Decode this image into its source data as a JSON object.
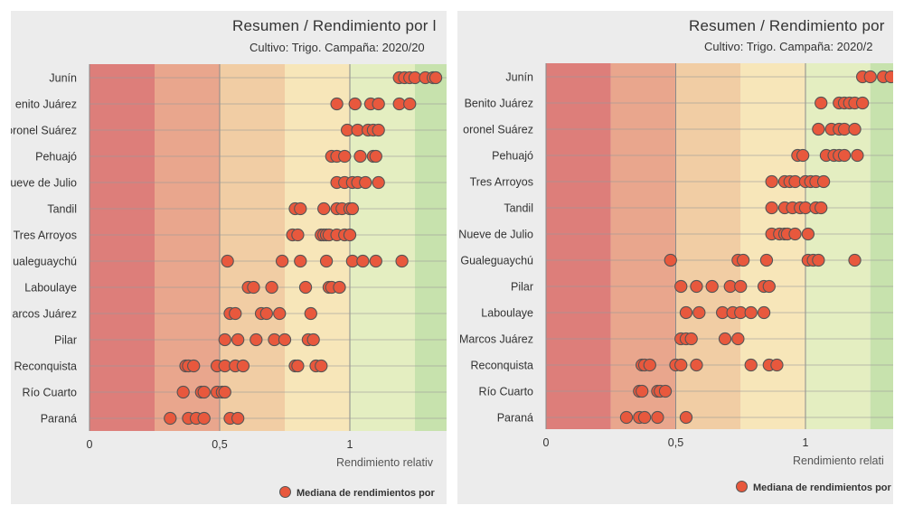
{
  "colors": {
    "panel_bg": "#ececec",
    "bands": [
      "#dd7e7a",
      "#e9a68d",
      "#f1cda4",
      "#f7e6b9",
      "#e4eec1",
      "#c7e2ad"
    ],
    "marker_fill": "#e8583d",
    "marker_stroke": "#555555",
    "grid": "#8a8a8a"
  },
  "legend_label": "Mediana de rendimientos por",
  "chart_data": [
    {
      "type": "scatter",
      "title": "Resumen / Rendimiento por l",
      "subtitle": "Cultivo: Trigo. Campaña: 2020/20",
      "xlabel": "Rendimiento relativ",
      "xticks": [
        "0",
        "0,5",
        "1"
      ],
      "xtick_values": [
        0,
        0.5,
        1
      ],
      "xlim": [
        0,
        1.4
      ],
      "band_edges": [
        0,
        0.25,
        0.5,
        0.75,
        1.0,
        1.25,
        1.5
      ],
      "grid": true,
      "legend_position": "bottom",
      "categories": [
        "Junín",
        "Benito Juárez",
        "Coronel Suárez",
        "Pehuajó",
        "Nueve de Julio",
        "Tandil",
        "Tres Arroyos",
        "Gualeguaychú",
        "Laboulaye",
        "Marcos Juárez",
        "Pilar",
        "Reconquista",
        "Río Cuarto",
        "Paraná"
      ],
      "category_labels": [
        "Junín",
        "enito Juárez",
        "oronel Suárez",
        "Pehuajó",
        "ueve de Julio",
        "Tandil",
        "Tres Arroyos",
        "ualeguaychú",
        "Laboulaye",
        "arcos Juárez",
        "Pilar",
        "Reconquista",
        "Río Cuarto",
        "Paraná"
      ],
      "series": [
        {
          "name": "Mediana de rendimientos por",
          "values": [
            [
              1.19,
              1.21,
              1.23,
              1.25,
              1.29,
              1.32,
              1.33
            ],
            [
              0.95,
              1.02,
              1.08,
              1.11,
              1.19,
              1.23
            ],
            [
              0.99,
              1.03,
              1.07,
              1.09,
              1.11
            ],
            [
              0.93,
              0.95,
              0.98,
              1.04,
              1.09,
              1.1
            ],
            [
              0.95,
              0.98,
              1.01,
              1.03,
              1.06,
              1.11
            ],
            [
              0.79,
              0.81,
              0.9,
              0.95,
              0.97,
              1.0,
              1.01
            ],
            [
              0.78,
              0.8,
              0.89,
              0.9,
              0.91,
              0.92,
              0.95,
              0.98,
              1.0
            ],
            [
              0.53,
              0.74,
              0.81,
              0.91,
              1.01,
              1.05,
              1.1,
              1.2
            ],
            [
              0.61,
              0.63,
              0.7,
              0.83,
              0.92,
              0.93,
              0.96
            ],
            [
              0.54,
              0.56,
              0.66,
              0.68,
              0.73,
              0.85
            ],
            [
              0.52,
              0.57,
              0.64,
              0.71,
              0.75,
              0.84,
              0.86
            ],
            [
              0.37,
              0.38,
              0.4,
              0.49,
              0.52,
              0.56,
              0.59,
              0.79,
              0.8,
              0.87,
              0.89
            ],
            [
              0.36,
              0.43,
              0.44,
              0.49,
              0.51,
              0.52
            ],
            [
              0.31,
              0.38,
              0.41,
              0.44,
              0.54,
              0.57
            ]
          ]
        }
      ]
    },
    {
      "type": "scatter",
      "title": "Resumen / Rendimiento por",
      "subtitle": "Cultivo: Trigo. Campaña: 2020/2",
      "xlabel": "Rendimiento relati",
      "xticks": [
        "0",
        "0,5",
        "1"
      ],
      "xtick_values": [
        0,
        0.5,
        1
      ],
      "xlim": [
        0,
        1.4
      ],
      "band_edges": [
        0,
        0.25,
        0.5,
        0.75,
        1.0,
        1.25,
        1.5
      ],
      "grid": true,
      "legend_position": "bottom",
      "categories": [
        "Junín",
        "Benito Juárez",
        "Coronel Suárez",
        "Pehuajó",
        "Tres Arroyos",
        "Tandil",
        "Nueve de Julio",
        "Gualeguaychú",
        "Pilar",
        "Laboulaye",
        "Marcos Juárez",
        "Reconquista",
        "Río Cuarto",
        "Paraná"
      ],
      "category_labels": [
        "Junín",
        "Benito Juárez",
        "oronel Suárez",
        "Pehuajó",
        "Tres Arroyos",
        "Tandil",
        "Nueve de Julio",
        "Gualeguaychú",
        "Pilar",
        "Laboulaye",
        "Marcos Juárez",
        "Reconquista",
        "Río Cuarto",
        "Paraná"
      ],
      "series": [
        {
          "name": "Mediana de rendimientos por",
          "values": [
            [
              1.22,
              1.25,
              1.3,
              1.33
            ],
            [
              1.06,
              1.13,
              1.15,
              1.17,
              1.19,
              1.22
            ],
            [
              1.05,
              1.1,
              1.13,
              1.15,
              1.19
            ],
            [
              0.97,
              0.99,
              1.08,
              1.11,
              1.13,
              1.15,
              1.2
            ],
            [
              0.87,
              0.92,
              0.94,
              0.96,
              1.0,
              1.02,
              1.04,
              1.07
            ],
            [
              0.87,
              0.92,
              0.95,
              0.98,
              1.0,
              1.04,
              1.06
            ],
            [
              0.87,
              0.9,
              0.92,
              0.93,
              0.96,
              1.01
            ],
            [
              0.48,
              0.74,
              0.76,
              0.85,
              1.01,
              1.03,
              1.05,
              1.19
            ],
            [
              0.52,
              0.58,
              0.64,
              0.71,
              0.75,
              0.84,
              0.86
            ],
            [
              0.54,
              0.59,
              0.68,
              0.72,
              0.75,
              0.79,
              0.84
            ],
            [
              0.52,
              0.54,
              0.56,
              0.69,
              0.74
            ],
            [
              0.37,
              0.38,
              0.4,
              0.5,
              0.52,
              0.58,
              0.79,
              0.86,
              0.89
            ],
            [
              0.36,
              0.37,
              0.43,
              0.44,
              0.46
            ],
            [
              0.31,
              0.36,
              0.38,
              0.43,
              0.54
            ]
          ]
        }
      ]
    }
  ]
}
